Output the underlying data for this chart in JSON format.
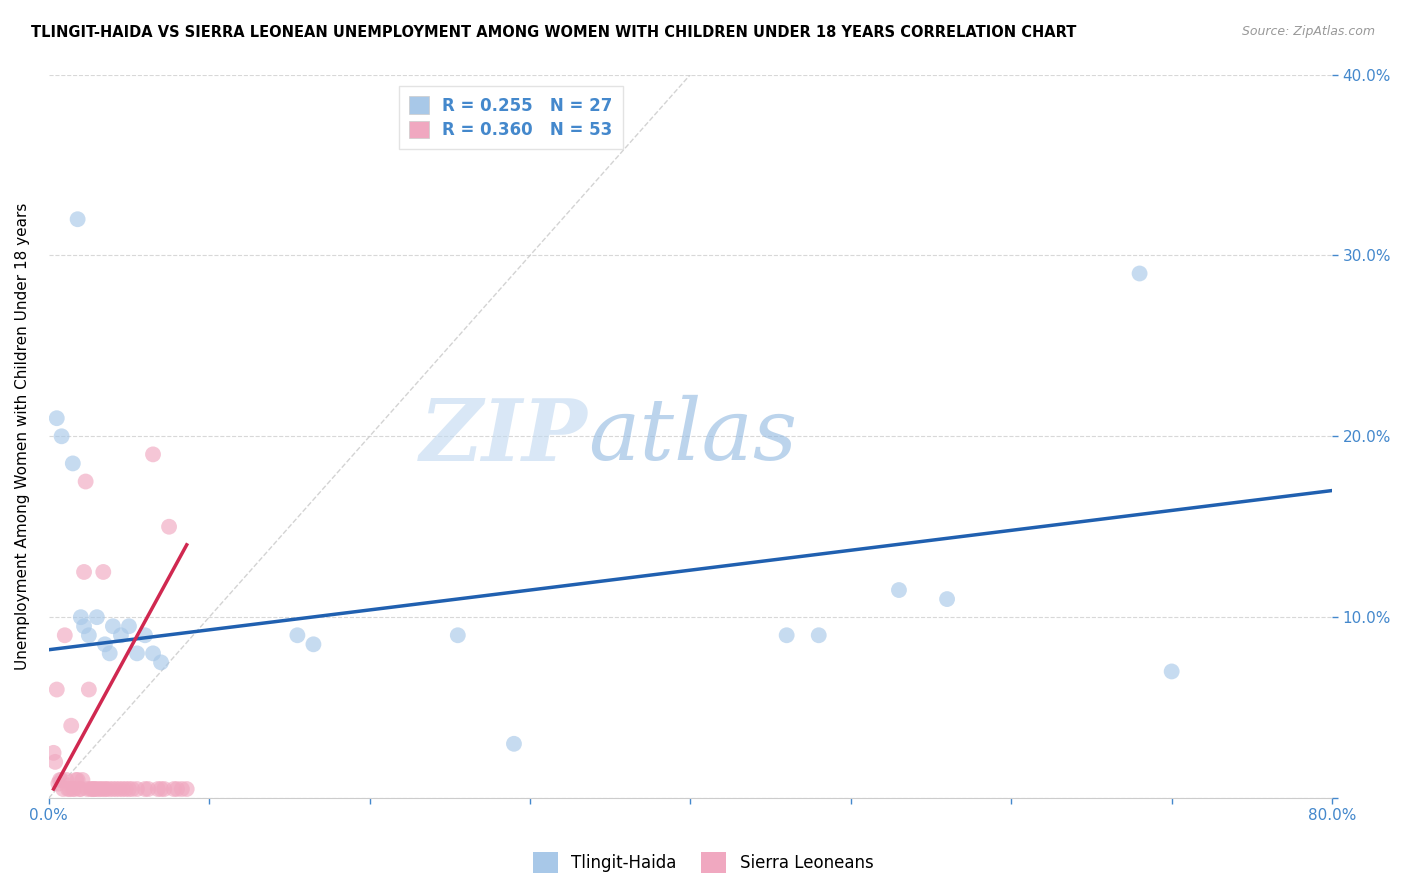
{
  "title": "TLINGIT-HAIDA VS SIERRA LEONEAN UNEMPLOYMENT AMONG WOMEN WITH CHILDREN UNDER 18 YEARS CORRELATION CHART",
  "source": "Source: ZipAtlas.com",
  "ylabel": "Unemployment Among Women with Children Under 18 years",
  "xlim": [
    0,
    0.8
  ],
  "ylim": [
    0,
    0.4
  ],
  "xticks": [
    0.0,
    0.1,
    0.2,
    0.3,
    0.4,
    0.5,
    0.6,
    0.7,
    0.8
  ],
  "yticks": [
    0.0,
    0.1,
    0.2,
    0.3,
    0.4
  ],
  "xticklabels_show": [
    "0.0%",
    "80.0%"
  ],
  "xticklabels_pos": [
    0.0,
    0.8
  ],
  "yticklabels": [
    "",
    "10.0%",
    "20.0%",
    "30.0%",
    "40.0%"
  ],
  "watermark_zip": "ZIP",
  "watermark_atlas": "atlas",
  "legend_r1": "R = 0.255",
  "legend_n1": "N = 27",
  "legend_r2": "R = 0.360",
  "legend_n2": "N = 53",
  "tlingit_color": "#a8c8e8",
  "sierra_color": "#f0a8c0",
  "trendline_tlingit_color": "#2060b0",
  "trendline_sierra_color": "#d02850",
  "diagonal_color": "#c8c8c8",
  "tlingit_x": [
    0.018,
    0.005,
    0.008,
    0.015,
    0.02,
    0.022,
    0.025,
    0.03,
    0.035,
    0.038,
    0.04,
    0.045,
    0.05,
    0.055,
    0.06,
    0.065,
    0.07,
    0.155,
    0.165,
    0.255,
    0.29,
    0.46,
    0.48,
    0.53,
    0.56,
    0.68,
    0.7
  ],
  "tlingit_y": [
    0.32,
    0.21,
    0.2,
    0.185,
    0.1,
    0.095,
    0.09,
    0.1,
    0.085,
    0.08,
    0.095,
    0.09,
    0.095,
    0.08,
    0.09,
    0.08,
    0.075,
    0.09,
    0.085,
    0.09,
    0.03,
    0.09,
    0.09,
    0.115,
    0.11,
    0.29,
    0.07
  ],
  "sierra_x": [
    0.003,
    0.004,
    0.005,
    0.006,
    0.007,
    0.008,
    0.009,
    0.01,
    0.011,
    0.012,
    0.013,
    0.014,
    0.015,
    0.016,
    0.017,
    0.018,
    0.019,
    0.02,
    0.021,
    0.022,
    0.023,
    0.024,
    0.025,
    0.026,
    0.027,
    0.028,
    0.029,
    0.03,
    0.032,
    0.033,
    0.034,
    0.035,
    0.036,
    0.038,
    0.04,
    0.042,
    0.044,
    0.046,
    0.048,
    0.05,
    0.052,
    0.055,
    0.06,
    0.062,
    0.065,
    0.068,
    0.07,
    0.072,
    0.075,
    0.078,
    0.08,
    0.083,
    0.086
  ],
  "sierra_y": [
    0.025,
    0.02,
    0.06,
    0.008,
    0.01,
    0.01,
    0.005,
    0.09,
    0.01,
    0.005,
    0.005,
    0.04,
    0.005,
    0.005,
    0.01,
    0.01,
    0.005,
    0.005,
    0.01,
    0.125,
    0.175,
    0.005,
    0.06,
    0.005,
    0.005,
    0.005,
    0.005,
    0.005,
    0.005,
    0.005,
    0.125,
    0.005,
    0.005,
    0.005,
    0.005,
    0.005,
    0.005,
    0.005,
    0.005,
    0.005,
    0.005,
    0.005,
    0.005,
    0.005,
    0.19,
    0.005,
    0.005,
    0.005,
    0.15,
    0.005,
    0.005,
    0.005,
    0.005
  ],
  "trendline_tlingit_x0": 0.0,
  "trendline_tlingit_x1": 0.8,
  "trendline_tlingit_y0": 0.082,
  "trendline_tlingit_y1": 0.17,
  "trendline_sierra_x0": 0.003,
  "trendline_sierra_x1": 0.086,
  "trendline_sierra_y0": 0.005,
  "trendline_sierra_y1": 0.14,
  "background_color": "#ffffff",
  "grid_color": "#d8d8d8",
  "tick_color": "#4488cc",
  "marker_size": 130,
  "marker_alpha": 0.65
}
